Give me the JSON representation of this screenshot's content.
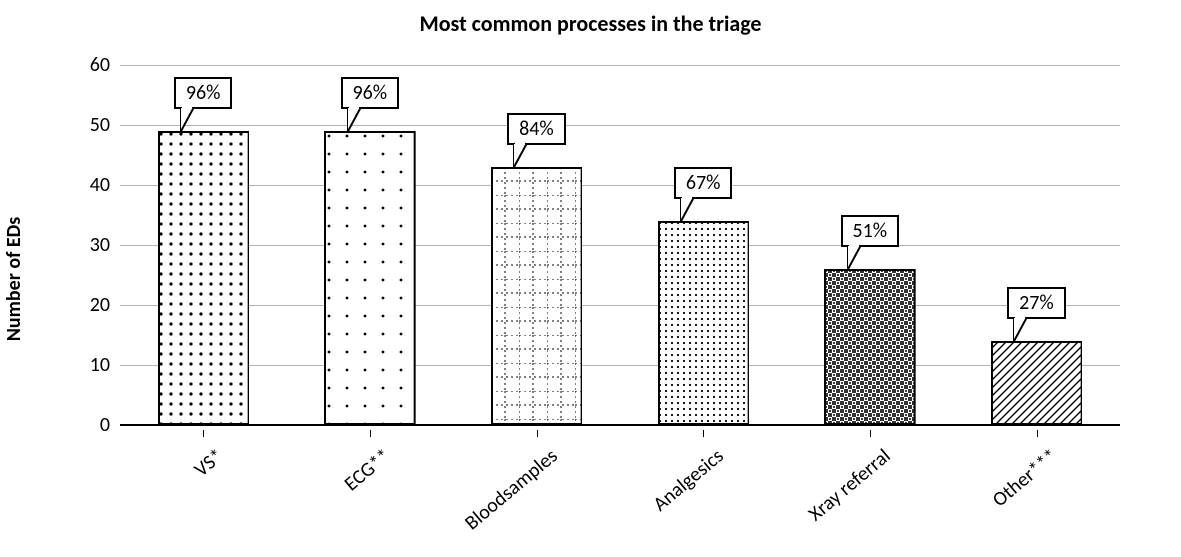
{
  "chart": {
    "type": "bar",
    "title": "Most common processes in the triage",
    "title_fontsize": 22,
    "title_fontweight": 700,
    "ylabel": "Number of EDs",
    "ylabel_fontsize": 20,
    "ylabel_fontweight": 700,
    "ylim": [
      0,
      60
    ],
    "ytick_step": 10,
    "yticks": [
      0,
      10,
      20,
      30,
      40,
      50,
      60
    ],
    "grid_color": "#b3b3b3",
    "axis_color": "#000000",
    "background_color": "#ffffff",
    "tick_fontsize": 20,
    "xlabel_fontsize": 20,
    "xlabel_rotation_deg": -40,
    "bar_width_ratio": 0.55,
    "bar_border_color": "#000000",
    "bar_border_width": 2,
    "callout_border_color": "#000000",
    "callout_fontsize": 20,
    "categories": [
      "VS*",
      "ECG**",
      "Bloodsamples",
      "Analgesics",
      "Xray referral",
      "Other***"
    ],
    "values": [
      49,
      49,
      43,
      34,
      26,
      14
    ],
    "callout_labels": [
      "96%",
      "96%",
      "84%",
      "67%",
      "51%",
      "27%"
    ],
    "callout_offset": 10,
    "patterns": [
      {
        "name": "dots-coarse",
        "svg": "dotsC",
        "fill": "#ffffff"
      },
      {
        "name": "dots-sparse",
        "svg": "dotsS",
        "fill": "#ffffff"
      },
      {
        "name": "grid-dotted",
        "svg": "gridD",
        "fill": "#ffffff"
      },
      {
        "name": "dots-fine",
        "svg": "dotsF",
        "fill": "#ffffff"
      },
      {
        "name": "checker-dark",
        "svg": "checkD",
        "fill": "#ffffff"
      },
      {
        "name": "diag-hatch",
        "svg": "diagH",
        "fill": "#ffffff"
      }
    ]
  }
}
